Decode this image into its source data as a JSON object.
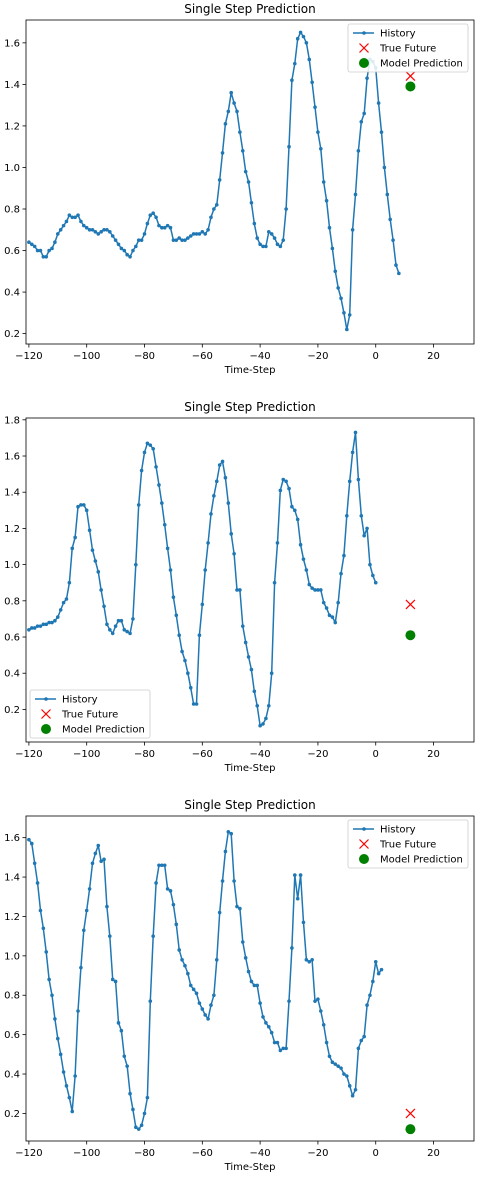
{
  "colors": {
    "history": "#1f77b4",
    "true_future": "#ff0000",
    "prediction": "#008000",
    "axis": "#000000",
    "legend_border": "#cccccc"
  },
  "chart_data": [
    {
      "type": "line",
      "title": "Single Step Prediction",
      "xlabel": "Time-Step",
      "ylabel": "",
      "xlim": [
        -121,
        34
      ],
      "ylim": [
        0.15,
        1.71
      ],
      "xticks": [
        -120,
        -100,
        -80,
        -60,
        -40,
        -20,
        0,
        20
      ],
      "yticks": [
        0.2,
        0.4,
        0.6,
        0.8,
        1.0,
        1.2,
        1.4,
        1.6
      ],
      "legend_position": "top-right",
      "series": [
        {
          "name": "History",
          "marker": "point",
          "x_start": -120,
          "x_step": 1,
          "values": [
            0.64,
            0.63,
            0.62,
            0.6,
            0.6,
            0.57,
            0.57,
            0.6,
            0.61,
            0.64,
            0.68,
            0.7,
            0.72,
            0.74,
            0.77,
            0.76,
            0.76,
            0.77,
            0.74,
            0.72,
            0.71,
            0.7,
            0.7,
            0.69,
            0.68,
            0.69,
            0.7,
            0.7,
            0.69,
            0.67,
            0.65,
            0.63,
            0.61,
            0.6,
            0.58,
            0.57,
            0.6,
            0.62,
            0.65,
            0.65,
            0.68,
            0.73,
            0.77,
            0.78,
            0.76,
            0.72,
            0.71,
            0.71,
            0.72,
            0.71,
            0.65,
            0.65,
            0.66,
            0.65,
            0.65,
            0.66,
            0.67,
            0.68,
            0.68,
            0.68,
            0.69,
            0.68,
            0.7,
            0.76,
            0.8,
            0.82,
            0.94,
            1.07,
            1.21,
            1.27,
            1.36,
            1.31,
            1.27,
            1.17,
            1.08,
            0.98,
            0.93,
            0.83,
            0.73,
            0.66,
            0.63,
            0.62,
            0.62,
            0.69,
            0.68,
            0.66,
            0.63,
            0.62,
            0.65,
            0.8,
            1.1,
            1.42,
            1.5,
            1.62,
            1.65,
            1.63,
            1.6,
            1.52,
            1.41,
            1.29,
            1.17,
            1.09,
            0.93,
            0.84,
            0.71,
            0.61,
            0.5,
            0.42,
            0.37,
            0.3,
            0.22,
            0.29,
            0.7,
            0.87,
            1.08,
            1.22,
            1.26,
            1.43,
            1.52,
            1.51,
            1.48,
            1.31,
            1.17,
            1.0,
            0.87,
            0.75,
            0.65,
            0.53,
            0.49
          ]
        },
        {
          "name": "True Future",
          "marker": "x",
          "x": [
            12
          ],
          "values": [
            1.44
          ]
        },
        {
          "name": "Model Prediction",
          "marker": "circle",
          "x": [
            12
          ],
          "values": [
            1.39
          ]
        }
      ]
    },
    {
      "type": "line",
      "title": "Single Step Prediction",
      "xlabel": "Time-Step",
      "ylabel": "",
      "xlim": [
        -121,
        34
      ],
      "ylim": [
        0.02,
        1.81
      ],
      "xticks": [
        -120,
        -100,
        -80,
        -60,
        -40,
        -20,
        0,
        20
      ],
      "yticks": [
        0.2,
        0.4,
        0.6,
        0.8,
        1.0,
        1.2,
        1.4,
        1.6,
        1.8
      ],
      "legend_position": "bottom-left",
      "series": [
        {
          "name": "History",
          "marker": "point",
          "x_start": -120,
          "x_step": 1,
          "values": [
            0.64,
            0.65,
            0.65,
            0.66,
            0.66,
            0.67,
            0.67,
            0.68,
            0.68,
            0.69,
            0.71,
            0.75,
            0.79,
            0.81,
            0.9,
            1.09,
            1.15,
            1.32,
            1.33,
            1.33,
            1.3,
            1.19,
            1.08,
            1.02,
            0.96,
            0.86,
            0.77,
            0.67,
            0.64,
            0.62,
            0.66,
            0.69,
            0.69,
            0.64,
            0.63,
            0.62,
            0.7,
            1.0,
            1.33,
            1.52,
            1.62,
            1.67,
            1.66,
            1.64,
            1.54,
            1.44,
            1.34,
            1.22,
            1.09,
            0.97,
            0.82,
            0.72,
            0.61,
            0.52,
            0.47,
            0.4,
            0.32,
            0.23,
            0.23,
            0.61,
            0.78,
            0.97,
            1.12,
            1.28,
            1.38,
            1.46,
            1.55,
            1.57,
            1.48,
            1.34,
            1.17,
            1.06,
            0.86,
            0.86,
            0.66,
            0.57,
            0.49,
            0.42,
            0.3,
            0.22,
            0.11,
            0.12,
            0.15,
            0.22,
            0.4,
            0.9,
            1.12,
            1.41,
            1.47,
            1.46,
            1.42,
            1.32,
            1.3,
            1.25,
            1.11,
            1.03,
            0.97,
            0.89,
            0.87,
            0.86,
            0.86,
            0.86,
            0.79,
            0.76,
            0.72,
            0.71,
            0.68,
            0.79,
            0.95,
            1.05,
            1.27,
            1.46,
            1.62,
            1.73,
            1.47,
            1.27,
            1.16,
            1.2,
            1.0,
            0.94,
            0.9
          ]
        },
        {
          "name": "True Future",
          "marker": "x",
          "x": [
            12
          ],
          "values": [
            0.78
          ]
        },
        {
          "name": "Model Prediction",
          "marker": "circle",
          "x": [
            12
          ],
          "values": [
            0.61
          ]
        }
      ]
    },
    {
      "type": "line",
      "title": "Single Step Prediction",
      "xlabel": "Time-Step",
      "ylabel": "",
      "xlim": [
        -121,
        34
      ],
      "ylim": [
        0.06,
        1.71
      ],
      "xticks": [
        -120,
        -100,
        -80,
        -60,
        -40,
        -20,
        0,
        20
      ],
      "yticks": [
        0.2,
        0.4,
        0.6,
        0.8,
        1.0,
        1.2,
        1.4,
        1.6
      ],
      "legend_position": "top-right",
      "series": [
        {
          "name": "History",
          "marker": "point",
          "x_start": -120,
          "x_step": 1,
          "values": [
            1.59,
            1.57,
            1.47,
            1.37,
            1.23,
            1.14,
            1.02,
            0.88,
            0.8,
            0.68,
            0.58,
            0.5,
            0.41,
            0.34,
            0.28,
            0.21,
            0.39,
            0.72,
            0.94,
            1.13,
            1.23,
            1.34,
            1.47,
            1.52,
            1.56,
            1.48,
            1.49,
            1.25,
            1.1,
            0.88,
            0.87,
            0.66,
            0.62,
            0.49,
            0.44,
            0.3,
            0.22,
            0.13,
            0.12,
            0.14,
            0.2,
            0.28,
            0.77,
            1.1,
            1.37,
            1.46,
            1.46,
            1.46,
            1.34,
            1.33,
            1.26,
            1.16,
            1.03,
            0.98,
            0.95,
            0.91,
            0.85,
            0.83,
            0.81,
            0.76,
            0.73,
            0.7,
            0.68,
            0.75,
            0.8,
            0.98,
            1.22,
            1.38,
            1.53,
            1.63,
            1.62,
            1.38,
            1.25,
            1.24,
            1.07,
            0.99,
            0.92,
            0.87,
            0.85,
            0.85,
            0.76,
            0.69,
            0.66,
            0.64,
            0.61,
            0.56,
            0.56,
            0.52,
            0.53,
            0.53,
            0.77,
            1.04,
            1.41,
            1.29,
            1.41,
            1.17,
            0.98,
            0.97,
            0.98,
            0.77,
            0.78,
            0.72,
            0.65,
            0.56,
            0.49,
            0.46,
            0.45,
            0.44,
            0.43,
            0.4,
            0.39,
            0.34,
            0.29,
            0.32,
            0.53,
            0.57,
            0.59,
            0.75,
            0.8,
            0.87,
            0.97,
            0.91,
            0.93
          ]
        },
        {
          "name": "True Future",
          "marker": "x",
          "x": [
            12
          ],
          "values": [
            0.2
          ]
        },
        {
          "name": "Model Prediction",
          "marker": "circle",
          "x": [
            12
          ],
          "values": [
            0.12
          ]
        }
      ]
    }
  ]
}
